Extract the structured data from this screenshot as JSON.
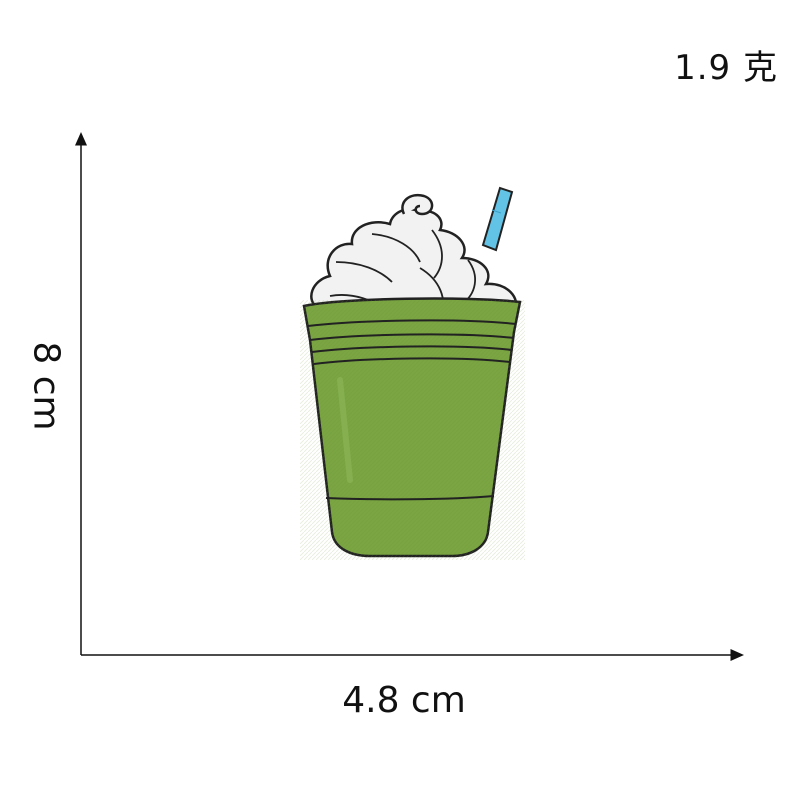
{
  "dimensions": {
    "weight": "1.9 克",
    "width": "4.8 cm",
    "height": "8 cm"
  },
  "product": {
    "subject": "embroidered-frappe-cup-patch",
    "colors": {
      "cup_fill": "#7aa542",
      "cup_shadow": "#6a9338",
      "cream": "#f2f2f2",
      "straw": "#62c3e6",
      "outline": "#222222",
      "axis": "#111111"
    }
  }
}
